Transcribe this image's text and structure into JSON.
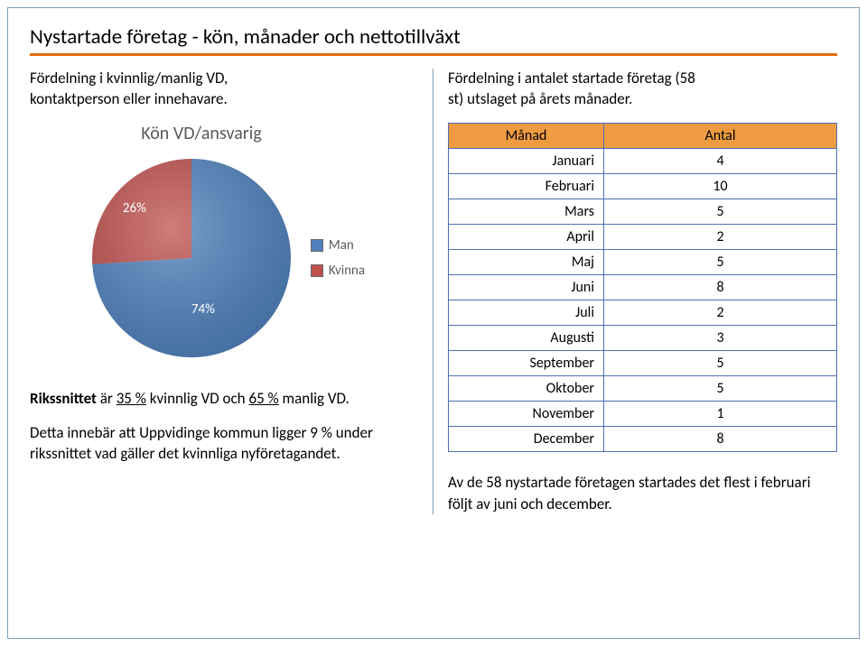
{
  "title": "Nystartade företag - kön, månader och nettotillväxt",
  "accent_color": "#e46c0a",
  "left": {
    "lead_l1": "Fördelning i kvinnlig/manlig VD,",
    "lead_l2": "kontaktperson eller innehavare.",
    "chart": {
      "title": "Kön VD/ansvarig",
      "type": "pie",
      "slices": [
        {
          "name": "Man",
          "pct": 74,
          "label": "74%",
          "color": "#4f81bd"
        },
        {
          "name": "Kvinna",
          "pct": 26,
          "label": "26%",
          "color": "#c0504d"
        }
      ],
      "legend": [
        {
          "label": "Man",
          "color": "#4f81bd"
        },
        {
          "label": "Kvinna",
          "color": "#c0504d"
        }
      ],
      "label_color": "#ffffff",
      "label_fontsize": 15,
      "title_color": "#595959",
      "title_fontsize": 20
    },
    "bottom_p1_a": "Rikssnittet ",
    "bottom_p1_b": "är ",
    "bottom_p1_u1": "35 %",
    "bottom_p1_c": " kvinnlig VD och ",
    "bottom_p1_u2": "65 %",
    "bottom_p1_d": " manlig VD.",
    "bottom_p2": "Detta innebär att Uppvidinge kommun ligger 9 % under rikssnittet vad gäller det kvinnliga nyföretagandet."
  },
  "right": {
    "lead_l1": "Fördelning i antalet startade företag (58",
    "lead_l2": "st) utslaget på årets månader.",
    "table": {
      "header_bg": "#ee9b42",
      "border_color": "#4f6fb5",
      "col1": "Månad",
      "col2": "Antal",
      "rows": [
        {
          "m": "Januari",
          "v": "4"
        },
        {
          "m": "Februari",
          "v": "10"
        },
        {
          "m": "Mars",
          "v": "5"
        },
        {
          "m": "April",
          "v": "2"
        },
        {
          "m": "Maj",
          "v": "5"
        },
        {
          "m": "Juni",
          "v": "8"
        },
        {
          "m": "Juli",
          "v": "2"
        },
        {
          "m": "Augusti",
          "v": "3"
        },
        {
          "m": "September",
          "v": "5"
        },
        {
          "m": "Oktober",
          "v": "5"
        },
        {
          "m": "November",
          "v": "1"
        },
        {
          "m": "December",
          "v": "8"
        }
      ]
    },
    "bottom": "Av de 58 nystartade företagen startades det flest i februari följt av juni och december."
  }
}
